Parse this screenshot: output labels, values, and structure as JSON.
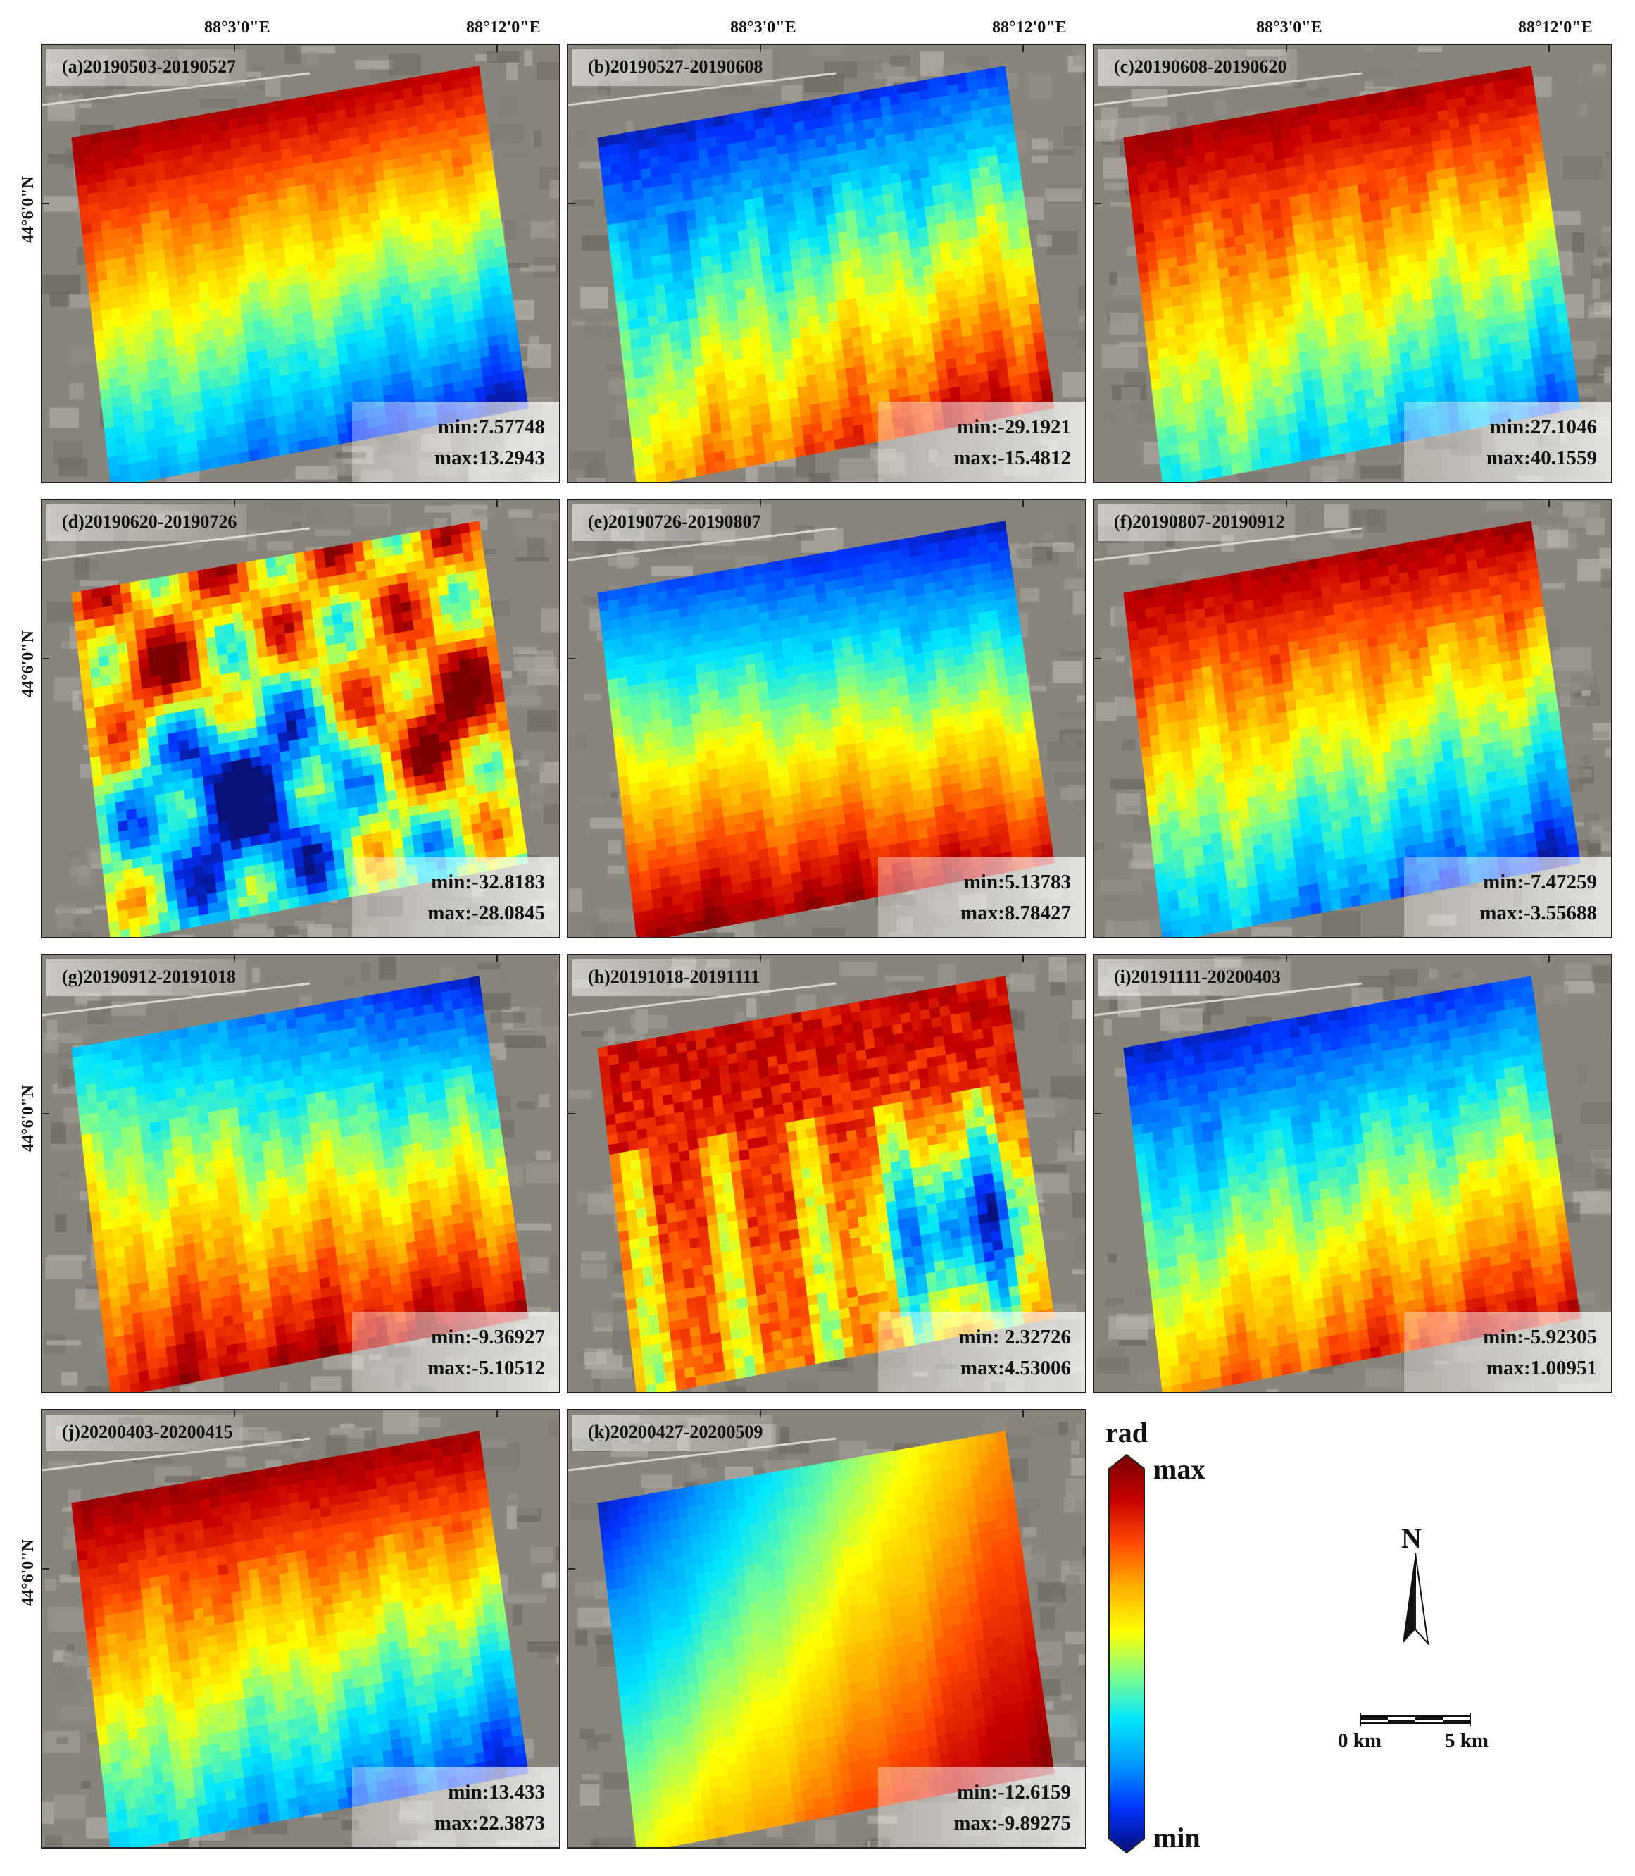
{
  "axes": {
    "top_labels": [
      "88°3'0\"E",
      "88°12'0\"E"
    ],
    "side_label": "44°6'0\"N"
  },
  "panels": [
    {
      "id": "a",
      "label": "(a)20190503-20190527",
      "min": "min:7.57748",
      "max": "max:13.2943",
      "pattern": "lin",
      "stops": [
        [
          0,
          -1,
          0.95
        ],
        [
          1,
          -1,
          0.9
        ],
        [
          0,
          1,
          0.28
        ],
        [
          1,
          1,
          0.03
        ]
      ],
      "noise": 0.15
    },
    {
      "id": "b",
      "label": "(b)20190527-20190608",
      "min": "min:-29.1921",
      "max": "max:-15.4812",
      "pattern": "lin",
      "stops": [
        [
          0,
          -1,
          0.05
        ],
        [
          1,
          -1,
          0.12
        ],
        [
          0,
          1,
          0.65
        ],
        [
          1,
          1,
          0.95
        ]
      ],
      "noise": 0.22
    },
    {
      "id": "c",
      "label": "(c)20190608-20190620",
      "min": "min:27.1046",
      "max": "max:40.1559",
      "pattern": "lin",
      "stops": [
        [
          0,
          -1,
          0.95
        ],
        [
          1,
          -1,
          0.92
        ],
        [
          0,
          1,
          0.4
        ],
        [
          1,
          1,
          0.15
        ]
      ],
      "noise": 0.2
    },
    {
      "id": "d",
      "label": "(d)20190620-20190726",
      "min": "min:-32.8183",
      "max": "max:-28.0845",
      "pattern": "blob",
      "stops": [],
      "noise": 0.35
    },
    {
      "id": "e",
      "label": "(e)20190726-20190807",
      "min": "min:5.13783",
      "max": "max:8.78427",
      "pattern": "lin",
      "stops": [
        [
          0,
          -1,
          0.15
        ],
        [
          1,
          -1,
          0.05
        ],
        [
          0,
          1,
          0.97
        ],
        [
          1,
          1,
          0.9
        ]
      ],
      "noise": 0.15
    },
    {
      "id": "f",
      "label": "(f)20190807-20190912",
      "min": "min:-7.47259",
      "max": "max:-3.55688",
      "pattern": "lin",
      "stops": [
        [
          0,
          -1,
          0.92
        ],
        [
          1,
          -1,
          0.95
        ],
        [
          0,
          1,
          0.3
        ],
        [
          1,
          1,
          0.05
        ]
      ],
      "noise": 0.22
    },
    {
      "id": "g",
      "label": "(g)20190912-20191018",
      "min": "min:-9.36927",
      "max": "max:-5.10512",
      "pattern": "lin",
      "stops": [
        [
          0,
          -1,
          0.3
        ],
        [
          1,
          -1,
          0.05
        ],
        [
          0,
          1,
          0.88
        ],
        [
          1,
          1,
          0.95
        ]
      ],
      "noise": 0.22
    },
    {
      "id": "h",
      "label": "(h)20191018-20191111",
      "min": "min: 2.32726",
      "max": "max:4.53006",
      "pattern": "ridge",
      "stops": [],
      "noise": 0.3
    },
    {
      "id": "i",
      "label": "(i)20191111-20200403",
      "min": "min:-5.92305",
      "max": "max:1.00951",
      "pattern": "lin",
      "stops": [
        [
          0,
          -1,
          0.05
        ],
        [
          1,
          -1,
          0.12
        ],
        [
          0,
          1,
          0.7
        ],
        [
          1,
          1,
          0.92
        ]
      ],
      "noise": 0.2
    },
    {
      "id": "j",
      "label": "(j)20200403-20200415",
      "min": "min:13.433",
      "max": "max:22.3873",
      "pattern": "lin",
      "stops": [
        [
          0,
          -1,
          0.95
        ],
        [
          1,
          -1,
          0.95
        ],
        [
          0,
          1,
          0.35
        ],
        [
          1,
          1,
          0.05
        ]
      ],
      "noise": 0.18
    },
    {
      "id": "k",
      "label": "(k)20200427-20200509",
      "min": "min:-12.6159",
      "max": "max:-9.89275",
      "pattern": "diag",
      "stops": [
        [
          0,
          -1,
          0.05
        ],
        [
          1,
          -1,
          0.7
        ],
        [
          0,
          1,
          0.55
        ],
        [
          1,
          1,
          0.98
        ]
      ],
      "noise": 0.05
    }
  ],
  "legend": {
    "unit": "rad",
    "max_label": "max",
    "min_label": "min",
    "north": "N",
    "scale_start": "0 km",
    "scale_end": "5 km"
  },
  "colors": {
    "ramp": [
      "#08107a",
      "#0033ff",
      "#0099ff",
      "#00e5ff",
      "#7fff8a",
      "#ffff00",
      "#ffb000",
      "#ff4a00",
      "#c40000",
      "#7a0000"
    ],
    "basemap": "#8a857c"
  }
}
